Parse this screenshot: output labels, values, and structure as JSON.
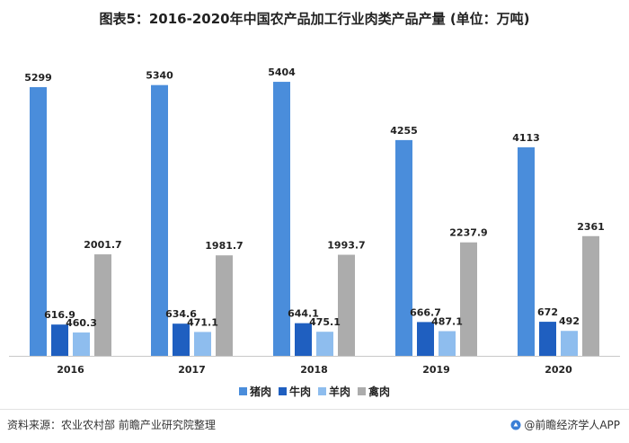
{
  "title": "图表5：2016-2020年中国农产品加工行业肉类产品产量 (单位：万吨)",
  "source": "资料来源：农业农村部 前瞻产业研究院整理",
  "brand": "@前瞻经济学人APP",
  "colors": {
    "pork": "#4a8ddb",
    "beef": "#1f5fc0",
    "mutton": "#8ebdee",
    "poultry": "#acacac",
    "axis": "#c8c8c8"
  },
  "chart_data": {
    "type": "bar",
    "categories": [
      "2016",
      "2017",
      "2018",
      "2019",
      "2020"
    ],
    "series": [
      {
        "name": "猪肉",
        "values": [
          5299,
          5340,
          5404,
          4255,
          4113
        ]
      },
      {
        "name": "牛肉",
        "values": [
          616.9,
          634.6,
          644.1,
          666.7,
          672
        ]
      },
      {
        "name": "羊肉",
        "values": [
          460.3,
          471.1,
          475.1,
          487.1,
          492
        ]
      },
      {
        "name": "禽肉",
        "values": [
          2001.7,
          1981.7,
          1993.7,
          2237.9,
          2361
        ]
      }
    ],
    "data_labels": [
      [
        "5299",
        "5340",
        "5404",
        "4255",
        "4113"
      ],
      [
        "616.9",
        "634.6",
        "644.1",
        "666.7",
        "672"
      ],
      [
        "460.3",
        "471.1",
        "475.1",
        "487.1",
        "492"
      ],
      [
        "2001.7",
        "1981.7",
        "1993.7",
        "2237.9",
        "2361"
      ]
    ],
    "ylim": [
      0,
      5600
    ],
    "grid": false,
    "legend_position": "bottom"
  }
}
